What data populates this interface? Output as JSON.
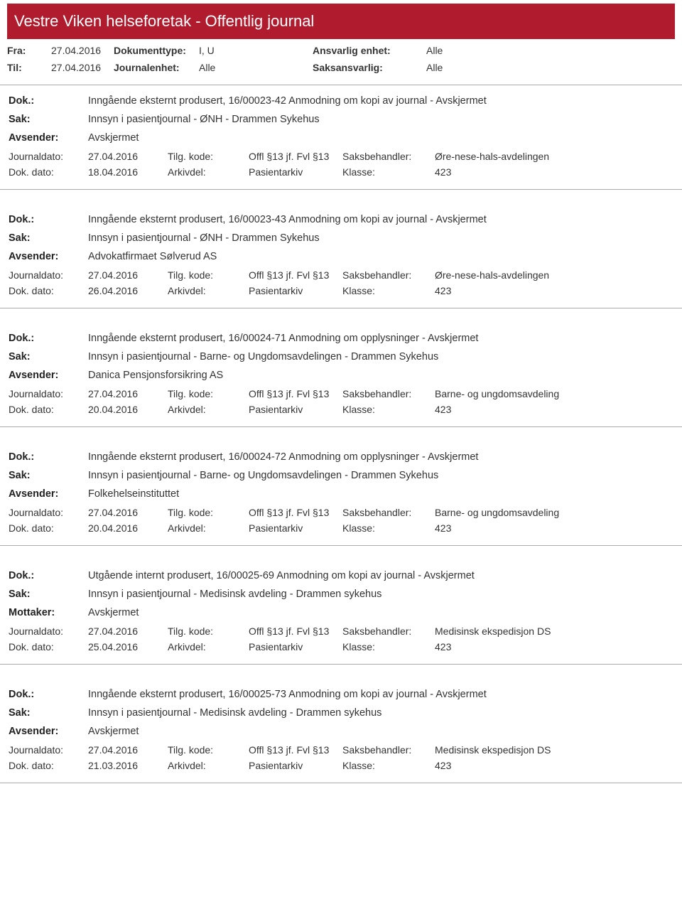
{
  "header": {
    "title": "Vestre Viken helseforetak - Offentlig journal",
    "background_color": "#b01c2e",
    "text_color": "#ffffff"
  },
  "filters": {
    "fra_label": "Fra:",
    "fra_value": "27.04.2016",
    "til_label": "Til:",
    "til_value": "27.04.2016",
    "doktype_label": "Dokumenttype:",
    "doktype_value": "I, U",
    "journalenhet_label": "Journalenhet:",
    "journalenhet_value": "Alle",
    "ansvarlig_label": "Ansvarlig enhet:",
    "ansvarlig_value": "Alle",
    "saksansvarlig_label": "Saksansvarlig:",
    "saksansvarlig_value": "Alle"
  },
  "labels": {
    "dok": "Dok.:",
    "sak": "Sak:",
    "avsender": "Avsender:",
    "mottaker": "Mottaker:",
    "journaldato": "Journaldato:",
    "tilgkode": "Tilg. kode:",
    "saksbehandler": "Saksbehandler:",
    "dokdato": "Dok. dato:",
    "arkivdel": "Arkivdel:",
    "klasse": "Klasse:"
  },
  "records": [
    {
      "dok": "Inngående eksternt produsert, 16/00023-42 Anmodning om kopi av journal - Avskjermet",
      "sak": "Innsyn i pasientjournal - ØNH - Drammen Sykehus",
      "party_label": "Avsender:",
      "party_value": "Avskjermet",
      "journaldato": "27.04.2016",
      "tilgkode": "Offl §13 jf. Fvl §13",
      "saksbehandler": "Øre-nese-hals-avdelingen",
      "dokdato": "18.04.2016",
      "arkivdel": "Pasientarkiv",
      "klasse": "423"
    },
    {
      "dok": "Inngående eksternt produsert, 16/00023-43 Anmodning om kopi av journal - Avskjermet",
      "sak": "Innsyn i pasientjournal - ØNH - Drammen Sykehus",
      "party_label": "Avsender:",
      "party_value": "Advokatfirmaet Sølverud AS",
      "journaldato": "27.04.2016",
      "tilgkode": "Offl §13 jf. Fvl §13",
      "saksbehandler": "Øre-nese-hals-avdelingen",
      "dokdato": "26.04.2016",
      "arkivdel": "Pasientarkiv",
      "klasse": "423"
    },
    {
      "dok": "Inngående eksternt produsert, 16/00024-71 Anmodning om opplysninger - Avskjermet",
      "sak": "Innsyn i pasientjournal - Barne- og Ungdomsavdelingen - Drammen Sykehus",
      "party_label": "Avsender:",
      "party_value": "Danica Pensjonsforsikring AS",
      "journaldato": "27.04.2016",
      "tilgkode": "Offl §13 jf. Fvl §13",
      "saksbehandler": "Barne- og ungdomsavdeling",
      "dokdato": "20.04.2016",
      "arkivdel": "Pasientarkiv",
      "klasse": "423"
    },
    {
      "dok": "Inngående eksternt produsert, 16/00024-72 Anmodning om opplysninger - Avskjermet",
      "sak": "Innsyn i pasientjournal - Barne- og Ungdomsavdelingen - Drammen Sykehus",
      "party_label": "Avsender:",
      "party_value": "Folkehelseinstituttet",
      "journaldato": "27.04.2016",
      "tilgkode": "Offl §13 jf. Fvl §13",
      "saksbehandler": "Barne- og ungdomsavdeling",
      "dokdato": "20.04.2016",
      "arkivdel": "Pasientarkiv",
      "klasse": "423"
    },
    {
      "dok": "Utgående internt produsert, 16/00025-69 Anmodning om kopi av journal - Avskjermet",
      "sak": "Innsyn i pasientjournal - Medisinsk avdeling - Drammen sykehus",
      "party_label": "Mottaker:",
      "party_value": "Avskjermet",
      "journaldato": "27.04.2016",
      "tilgkode": "Offl §13 jf. Fvl §13",
      "saksbehandler": "Medisinsk ekspedisjon DS",
      "dokdato": "25.04.2016",
      "arkivdel": "Pasientarkiv",
      "klasse": "423"
    },
    {
      "dok": "Inngående eksternt produsert, 16/00025-73 Anmodning om kopi av journal - Avskjermet",
      "sak": "Innsyn i pasientjournal - Medisinsk avdeling - Drammen sykehus",
      "party_label": "Avsender:",
      "party_value": "Avskjermet",
      "journaldato": "27.04.2016",
      "tilgkode": "Offl §13 jf. Fvl §13",
      "saksbehandler": "Medisinsk ekspedisjon DS",
      "dokdato": "21.03.2016",
      "arkivdel": "Pasientarkiv",
      "klasse": "423"
    }
  ],
  "style": {
    "body_bg": "#ffffff",
    "text_color": "#333333",
    "divider_color": "#aaaaaa",
    "font_family": "Segoe UI",
    "base_font_size": 14,
    "header_font_size": 22
  }
}
